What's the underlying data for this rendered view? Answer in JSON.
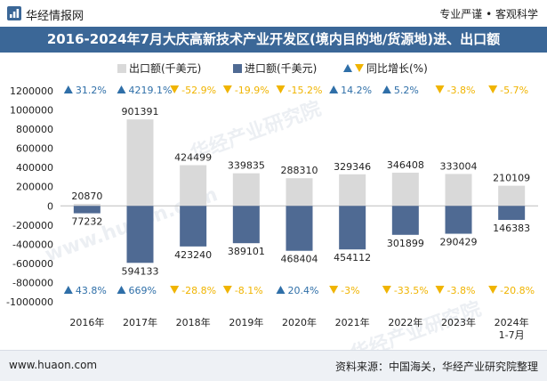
{
  "header": {
    "brand": "华经情报网",
    "tagline": "专业严谨 • 客观科学",
    "logo_icon": "huajing-logo-icon"
  },
  "title": "2016-2024年7月大庆高新技术产业开发区(境内目的地/货源地)进、出口额",
  "legend": {
    "export_label": "出口额(千美元)",
    "import_label": "进口额(千美元)",
    "growth_label": "同比增长(%)"
  },
  "colors": {
    "export": "#d9d9d9",
    "import": "#4f6a93",
    "up": "#2f6fa8",
    "down": "#f0b400",
    "title_bg": "#3b6797"
  },
  "watermarks": [
    "华经产业研究院",
    "www.huaon.com"
  ],
  "footer": {
    "left": "www.huaon.com",
    "right": "资料来源：中国海关，华经产业研究院整理"
  },
  "chart_data": {
    "type": "bar",
    "categories": [
      "2016年",
      "2017年",
      "2018年",
      "2019年",
      "2020年",
      "2021年",
      "2022年",
      "2023年",
      "2024年\n1-7月"
    ],
    "series": [
      {
        "name": "出口额(千美元)",
        "values": [
          20870,
          901391,
          424499,
          339835,
          288310,
          329346,
          346408,
          333004,
          210109
        ]
      },
      {
        "name": "进口额(千美元)",
        "values": [
          -77232,
          -594133,
          -423240,
          -389101,
          -468404,
          -454112,
          -301899,
          -290429,
          -146383
        ]
      }
    ],
    "export_growth": [
      {
        "dir": "up",
        "text": "31.2%"
      },
      {
        "dir": "up",
        "text": "4219.1%"
      },
      {
        "dir": "down",
        "text": "-52.9%"
      },
      {
        "dir": "down",
        "text": "-19.9%"
      },
      {
        "dir": "down",
        "text": "-15.2%"
      },
      {
        "dir": "up",
        "text": "14.2%"
      },
      {
        "dir": "up",
        "text": "5.2%"
      },
      {
        "dir": "down",
        "text": "-3.8%"
      },
      {
        "dir": "down",
        "text": "-5.7%"
      }
    ],
    "import_growth": [
      {
        "dir": "up",
        "text": "43.8%"
      },
      {
        "dir": "up",
        "text": "669%"
      },
      {
        "dir": "down",
        "text": "-28.8%"
      },
      {
        "dir": "down",
        "text": "-8.1%"
      },
      {
        "dir": "up",
        "text": "20.4%"
      },
      {
        "dir": "down",
        "text": "-3%"
      },
      {
        "dir": "down",
        "text": "-33.5%"
      },
      {
        "dir": "down",
        "text": "-3.8%"
      },
      {
        "dir": "down",
        "text": "-20.8%"
      }
    ],
    "export_labels": [
      "20870",
      "901391",
      "424499",
      "339835",
      "288310",
      "329346",
      "346408",
      "333004",
      "210109"
    ],
    "import_labels": [
      "77232",
      "594133",
      "423240",
      "389101",
      "468404",
      "454112",
      "301899",
      "290429",
      "146383"
    ],
    "yticks": [
      "1200000",
      "1000000",
      "800000",
      "600000",
      "400000",
      "200000",
      "0",
      "-200000",
      "-400000",
      "-600000",
      "-800000",
      "-1000000"
    ],
    "ylim": [
      -1000000,
      1200000
    ],
    "grid": false,
    "legend_position": "top-center"
  }
}
